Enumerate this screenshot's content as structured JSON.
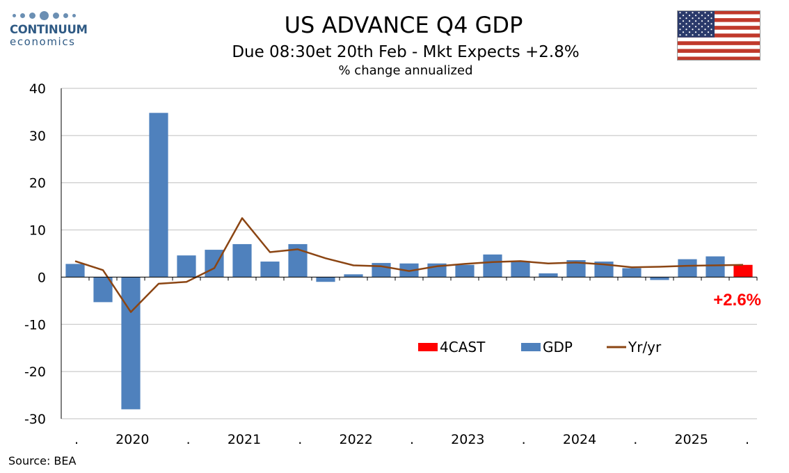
{
  "header": {
    "logo_name": "CONTINUUM",
    "logo_sub": "economics",
    "title": "US ADVANCE Q4  GDP",
    "subtitle": "Due 08:30et 20th Feb - Mkt Expects +2.8%",
    "units": "% change annualized"
  },
  "footer": {
    "source": "Source: BEA"
  },
  "callout": {
    "text": "+2.6%",
    "color": "#ff0000"
  },
  "flag_icon": "us-flag-icon",
  "chart_data": {
    "type": "bar",
    "ylim": [
      -30,
      40
    ],
    "yticks": [
      "40",
      "30",
      "20",
      "10",
      "0",
      "-10",
      "-20",
      "-30"
    ],
    "ytick_values": [
      40,
      30,
      20,
      10,
      0,
      -10,
      -20,
      -30
    ],
    "x_tick_labels": [
      ".",
      "2020",
      ".",
      "2021",
      ".",
      "2022",
      ".",
      "2023",
      ".",
      "2024",
      ".",
      "2025",
      "."
    ],
    "categories": [
      "2019Q4",
      "2020Q1",
      "2020Q2",
      "2020Q3",
      "2020Q4",
      "2021Q1",
      "2021Q2",
      "2021Q3",
      "2021Q4",
      "2022Q1",
      "2022Q2",
      "2022Q3",
      "2022Q4",
      "2023Q1",
      "2023Q2",
      "2023Q3",
      "2023Q4",
      "2024Q1",
      "2024Q2",
      "2024Q3",
      "2024Q4",
      "2025Q1",
      "2025Q2",
      "2025Q3",
      "2025Q4"
    ],
    "series": [
      {
        "name": "GDP",
        "type": "bar",
        "color": "#4f81bd",
        "values": [
          2.8,
          -5.3,
          -28.0,
          34.8,
          4.6,
          5.8,
          7.0,
          3.3,
          7.0,
          -1.0,
          0.6,
          3.0,
          2.9,
          2.9,
          2.6,
          4.8,
          3.4,
          0.8,
          3.6,
          3.3,
          1.9,
          -0.6,
          3.8,
          4.4,
          null
        ]
      },
      {
        "name": "4CAST",
        "type": "bar",
        "color": "#ff0000",
        "values": [
          null,
          null,
          null,
          null,
          null,
          null,
          null,
          null,
          null,
          null,
          null,
          null,
          null,
          null,
          null,
          null,
          null,
          null,
          null,
          null,
          null,
          null,
          null,
          null,
          2.6
        ]
      },
      {
        "name": "Yr/yr",
        "type": "line",
        "color": "#8b4513",
        "values": [
          3.4,
          1.5,
          -7.4,
          -1.4,
          -1.0,
          1.9,
          12.5,
          5.3,
          5.9,
          4.0,
          2.5,
          2.3,
          1.3,
          2.3,
          2.8,
          3.2,
          3.4,
          2.9,
          3.1,
          2.7,
          2.1,
          2.2,
          2.4,
          2.5,
          2.6
        ]
      }
    ],
    "legend": [
      "4CAST",
      "GDP",
      "Yr/yr"
    ],
    "legend_position": "lower-right",
    "grid": true
  }
}
